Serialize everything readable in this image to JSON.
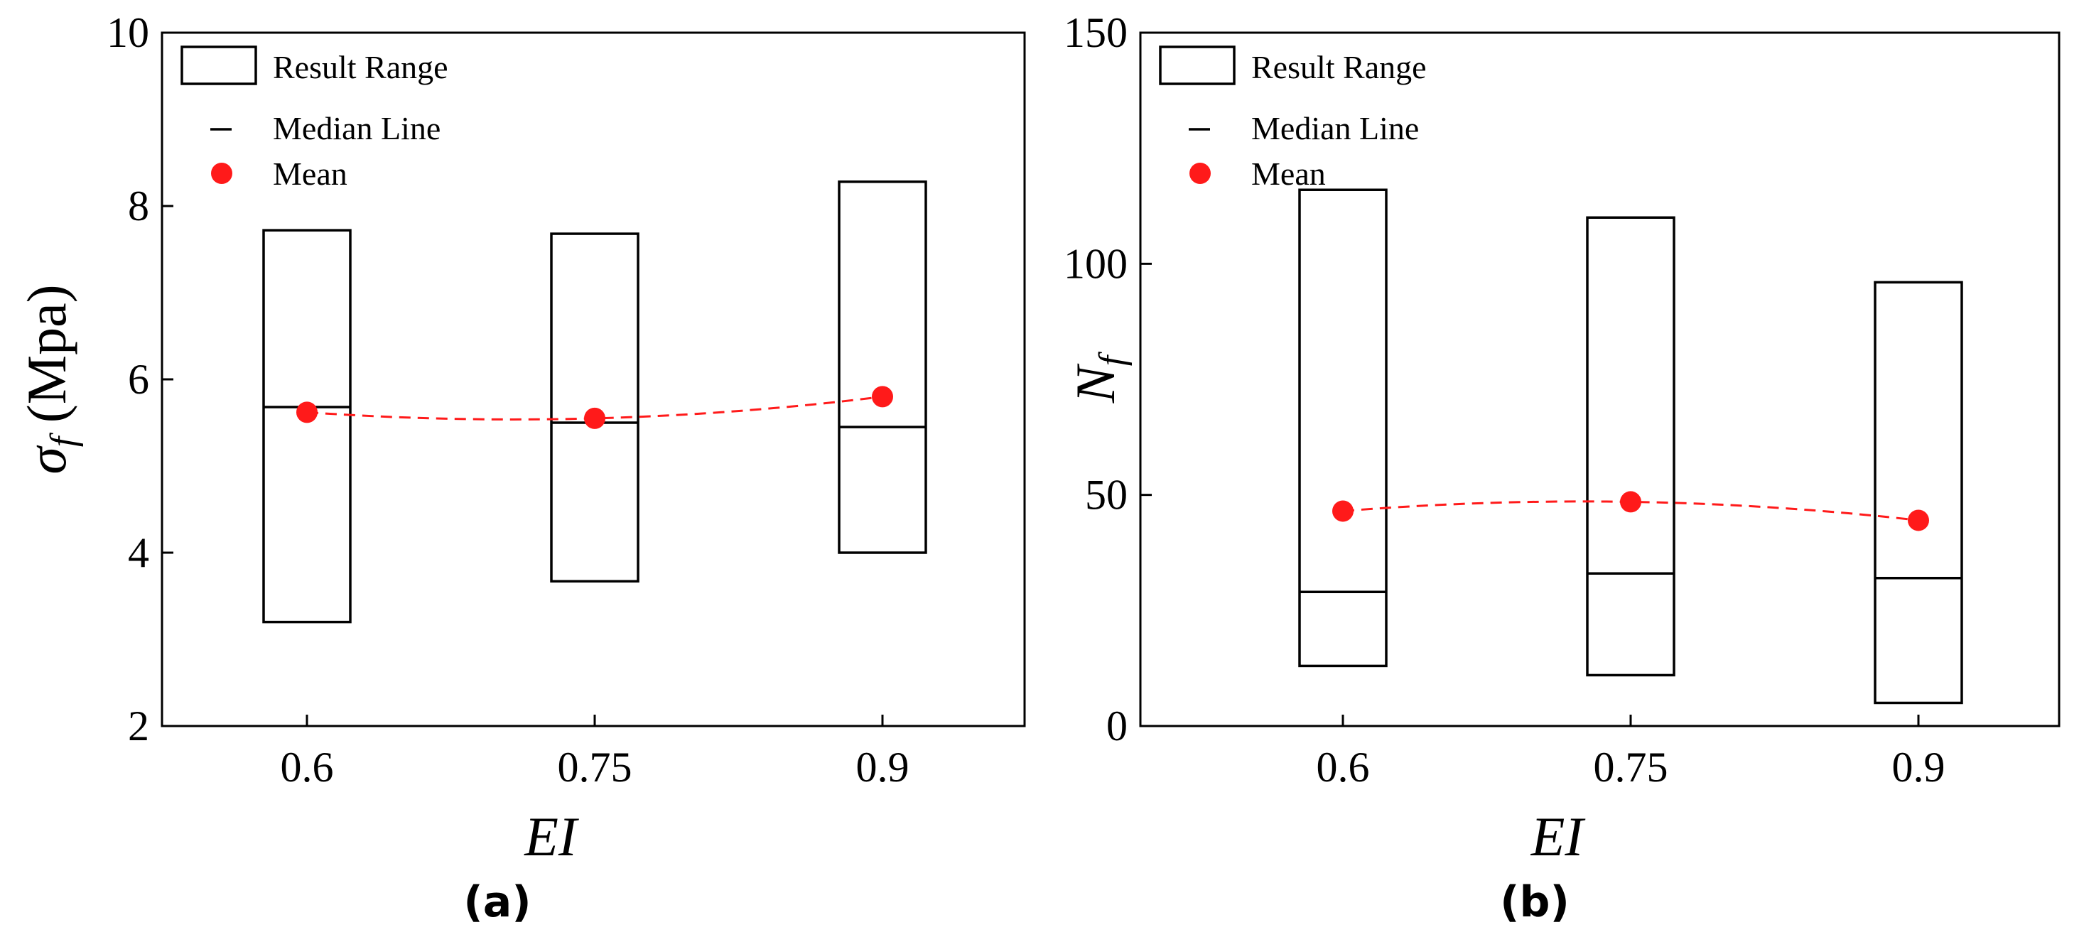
{
  "colors": {
    "mean": "#ff1a1a",
    "axis": "#000000"
  },
  "chart_data": [
    {
      "type": "box",
      "panel_label": "(a)",
      "xlabel": "EI",
      "ylabel": "σ",
      "ylabel_sub": "f",
      "ylabel_unit": " (Mpa)",
      "categories": [
        "0.6",
        "0.75",
        "0.9"
      ],
      "ylim": [
        2,
        10
      ],
      "yticks": [
        2,
        4,
        6,
        8,
        10
      ],
      "range_min": [
        3.2,
        3.67,
        4.0
      ],
      "range_max": [
        7.72,
        7.68,
        8.28
      ],
      "median": [
        5.68,
        5.5,
        5.45
      ],
      "mean": [
        5.62,
        5.55,
        5.8
      ],
      "legend": {
        "range": "Result Range",
        "median": "Median Line",
        "mean": "Mean"
      },
      "legend_position": "top-left",
      "grid": false
    },
    {
      "type": "box",
      "panel_label": "(b)",
      "xlabel": "EI",
      "ylabel": "N",
      "ylabel_sub": "f",
      "ylabel_unit": "",
      "categories": [
        "0.6",
        "0.75",
        "0.9"
      ],
      "ylim": [
        0,
        150
      ],
      "yticks": [
        0,
        50,
        100,
        150
      ],
      "range_min": [
        13,
        11,
        5
      ],
      "range_max": [
        116,
        110,
        96
      ],
      "median": [
        29,
        33,
        32
      ],
      "mean": [
        46.5,
        48.5,
        44.5
      ],
      "legend": {
        "range": "Result Range",
        "median": "Median Line",
        "mean": "Mean"
      },
      "legend_position": "top-left",
      "grid": false
    }
  ]
}
